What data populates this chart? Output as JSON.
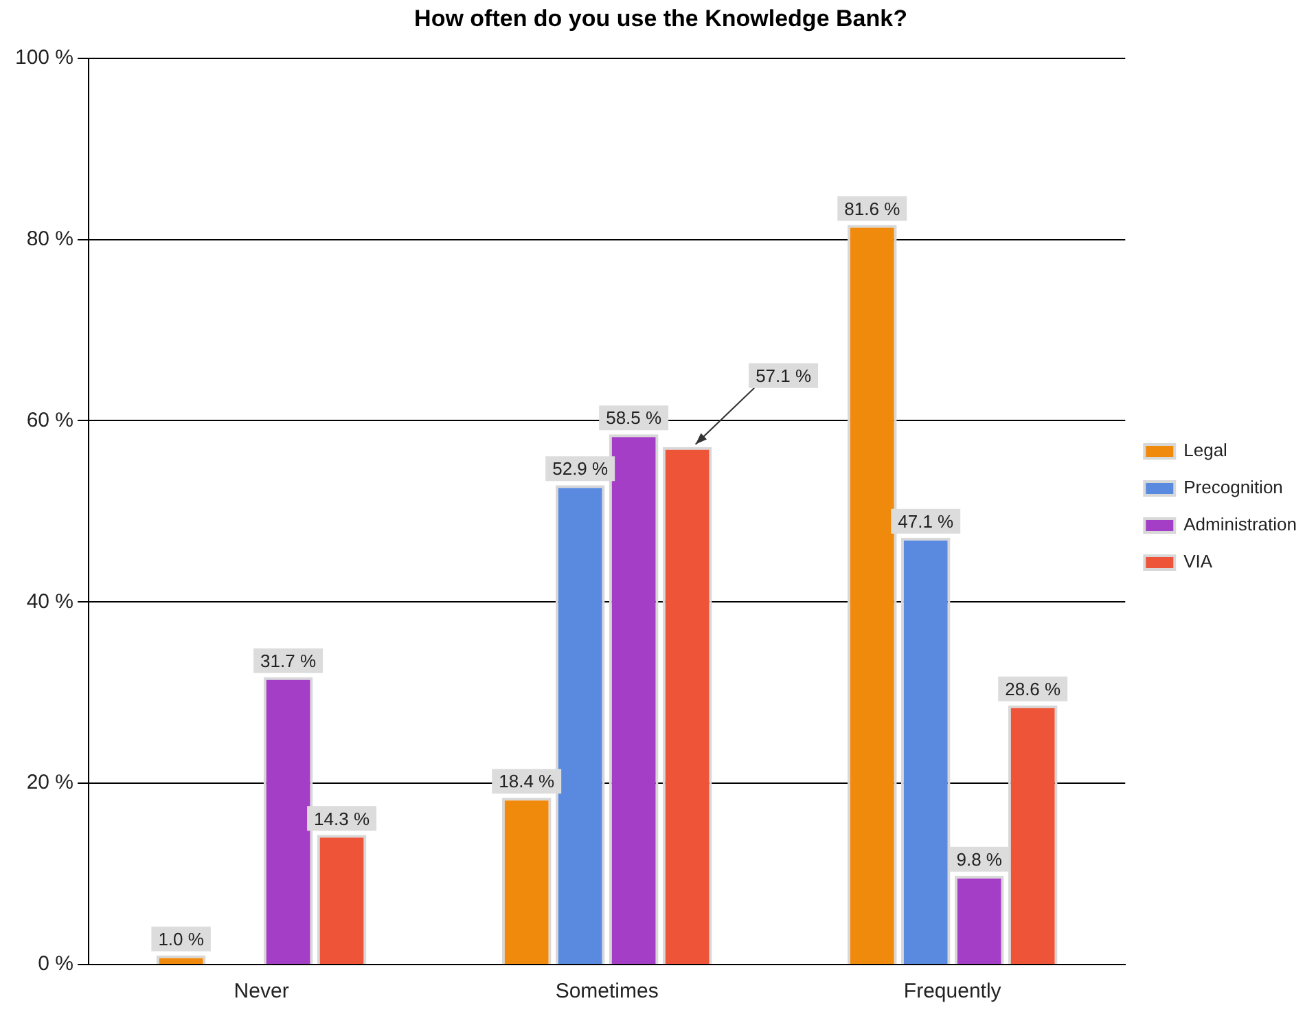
{
  "chart_data": {
    "type": "bar",
    "title": "How often do you use the Knowledge Bank?",
    "categories": [
      "Never",
      "Sometimes",
      "Frequently"
    ],
    "series": [
      {
        "name": "Legal",
        "color": "#f08a0c",
        "values": [
          1.0,
          18.4,
          81.6
        ],
        "value_labels": [
          "1.0 %",
          "18.4 %",
          "81.6 %"
        ]
      },
      {
        "name": "Precognition",
        "color": "#5a8ae0",
        "values": [
          0,
          52.9,
          47.1
        ],
        "value_labels": [
          null,
          "52.9 %",
          "47.1 %"
        ]
      },
      {
        "name": "Administration",
        "color": "#a43ec6",
        "values": [
          31.7,
          58.5,
          9.8
        ],
        "value_labels": [
          "31.7 %",
          "58.5 %",
          "9.8 %"
        ]
      },
      {
        "name": "VIA",
        "color": "#ee5538",
        "values": [
          14.3,
          57.1,
          28.6
        ],
        "value_labels": [
          "14.3 %",
          "57.1 %",
          "28.6 %"
        ]
      }
    ],
    "ylim": [
      0,
      100
    ],
    "yticks": [
      {
        "value": 0,
        "label": "0 %"
      },
      {
        "value": 20,
        "label": "20 %"
      },
      {
        "value": 40,
        "label": "40 %"
      },
      {
        "value": 60,
        "label": "60 %"
      },
      {
        "value": 80,
        "label": "80 %"
      },
      {
        "value": 100,
        "label": "100 %"
      }
    ],
    "grid": "y",
    "legend": "right"
  }
}
